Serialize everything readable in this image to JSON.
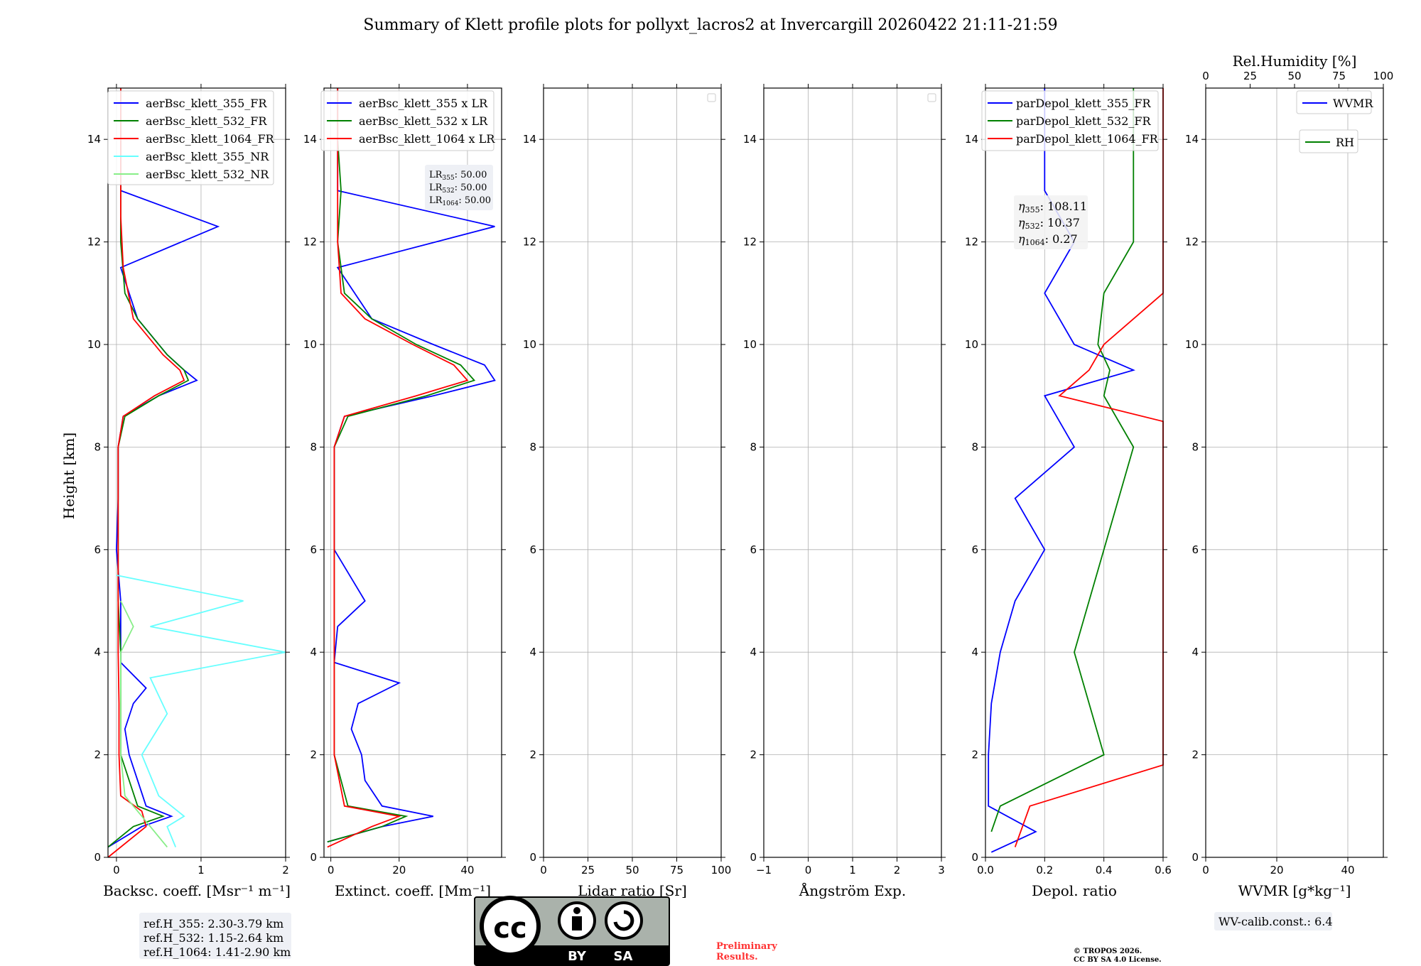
{
  "title": "Summary of Klett profile plots for pollyxt_lacros2 at Invercargill 20260422 21:11-21:59",
  "colors": {
    "c355": "#0000ff",
    "c532": "#008000",
    "c1064": "#ff0000",
    "c355nr": "#66ffff",
    "c532nr": "#88ee88"
  },
  "ylabel": "Height [km]",
  "y_ticks": [
    "0",
    "2",
    "4",
    "6",
    "8",
    "10",
    "12",
    "14"
  ],
  "panels": [
    {
      "xlabel": "Backsc. coeff. [Msr⁻¹ m⁻¹]",
      "xticks": [
        "0",
        "1",
        "2"
      ],
      "legend": [
        "aerBsc_klett_355_FR",
        "aerBsc_klett_532_FR",
        "aerBsc_klett_1064_FR",
        "aerBsc_klett_355_NR",
        "aerBsc_klett_532_NR"
      ]
    },
    {
      "xlabel": "Extinct. coeff. [Mm⁻¹]",
      "xticks": [
        "0",
        "20",
        "40"
      ],
      "legend": [
        "aerBsc_klett_355 x LR",
        "aerBsc_klett_532 x LR",
        "aerBsc_klett_1064 x LR"
      ]
    },
    {
      "xlabel": "Lidar ratio [Sr]",
      "xticks": [
        "0",
        "25",
        "50",
        "75",
        "100"
      ]
    },
    {
      "xlabel": "Ångström Exp.",
      "xticks": [
        "−1",
        "0",
        "1",
        "2",
        "3"
      ]
    },
    {
      "xlabel": "Depol. ratio",
      "xticks": [
        "0.0",
        "0.2",
        "0.4",
        "0.6"
      ],
      "legend": [
        "parDepol_klett_355_FR",
        "parDepol_klett_532_FR",
        "parDepol_klett_1064_FR"
      ]
    },
    {
      "xlabel": "WVMR [g*kg⁻¹]",
      "xticks": [
        "0",
        "20",
        "40"
      ],
      "top_label": "Rel.Humidity [%]",
      "top_ticks": [
        "0",
        "25",
        "50",
        "75",
        "100"
      ],
      "legend": [
        "WVMR",
        "RH"
      ]
    }
  ],
  "lr_box": {
    "lr355_label": "LR",
    "lr355_sub": "355",
    "lr355_val": ": 50.00",
    "lr532_label": "LR",
    "lr532_sub": "532",
    "lr532_val": ": 50.00",
    "lr1064_label": "LR",
    "lr1064_sub": "1064",
    "lr1064_val": ": 50.00"
  },
  "eta_box": {
    "e355_label": "η",
    "e355_sub": "355",
    "e355_val": ": 108.11",
    "e532_label": "η",
    "e532_sub": "532",
    "e532_val": ": 10.37",
    "e1064_label": "η",
    "e1064_sub": "1064",
    "e1064_val": ": 0.27"
  },
  "ref_box": [
    "ref.H_355: 2.30-3.79 km",
    "ref.H_532: 1.15-2.64 km",
    "ref.H_1064: 1.41-2.90 km"
  ],
  "wv_calib": "WV-calib.const.: 6.4",
  "license_badge": {
    "by": "BY",
    "sa": "SA",
    "cc": "cc"
  },
  "preliminary": [
    "Preliminary",
    "Results."
  ],
  "copyright": [
    "© TROPOS 2026.",
    "CC BY SA 4.0 License."
  ],
  "chart_data": {
    "type": "line",
    "title": "Summary of Klett profile plots for pollyxt_lacros2 at Invercargill 20260422 21:11-21:59",
    "ylabel": "Height [km]",
    "ylim": [
      0,
      15
    ],
    "panels": [
      {
        "xlabel": "Backsc. coeff. [Msr-1 m-1]",
        "xlim": [
          -0.1,
          2
        ],
        "series": [
          {
            "name": "aerBsc_klett_355_FR",
            "color": "#0000ff",
            "h": [
              0.2,
              0.6,
              0.8,
              1.0,
              1.5,
              2.0,
              2.5,
              3.0,
              3.3,
              3.8,
              4.5,
              5.0,
              6.0,
              7.0,
              8.0,
              8.6,
              9.0,
              9.3,
              9.5,
              9.8,
              10.5,
              11.5,
              12.3,
              13.0,
              14.0,
              15.0
            ],
            "v": [
              -0.1,
              0.3,
              0.65,
              0.35,
              0.25,
              0.15,
              0.1,
              0.2,
              0.35,
              0.05,
              0.05,
              0.05,
              0.0,
              0.02,
              0.02,
              0.08,
              0.5,
              0.95,
              0.8,
              0.6,
              0.25,
              0.05,
              1.2,
              0.05,
              0.05,
              0.05
            ]
          },
          {
            "name": "aerBsc_klett_532_FR",
            "color": "#008000",
            "h": [
              0.2,
              0.6,
              0.8,
              1.0,
              2.0,
              3.0,
              4.0,
              5.0,
              6.0,
              7.0,
              8.0,
              8.6,
              9.0,
              9.3,
              9.5,
              9.8,
              10.5,
              11.0,
              12.0,
              13.0,
              14.0,
              15.0
            ],
            "v": [
              -0.1,
              0.2,
              0.55,
              0.25,
              0.05,
              0.05,
              0.05,
              0.02,
              0.02,
              0.02,
              0.02,
              0.1,
              0.5,
              0.85,
              0.8,
              0.6,
              0.25,
              0.1,
              0.05,
              0.05,
              0.05,
              0.05
            ]
          },
          {
            "name": "aerBsc_klett_1064_FR",
            "color": "#ff0000",
            "h": [
              0.0,
              0.6,
              0.9,
              1.2,
              2.0,
              3.0,
              4.0,
              6.0,
              8.0,
              8.6,
              9.0,
              9.3,
              9.5,
              9.8,
              10.5,
              11.5,
              12.5,
              13.5,
              14.5,
              15.0
            ],
            "v": [
              -0.1,
              0.35,
              0.3,
              0.05,
              0.03,
              0.03,
              0.02,
              0.02,
              0.02,
              0.08,
              0.45,
              0.8,
              0.75,
              0.55,
              0.2,
              0.08,
              0.05,
              0.05,
              0.05,
              0.05
            ]
          },
          {
            "name": "aerBsc_klett_355_NR",
            "color": "#66ffff",
            "h": [
              0.2,
              0.6,
              0.8,
              1.2,
              2.0,
              2.8,
              3.5,
              4.0,
              4.5,
              5.0,
              5.5
            ],
            "v": [
              0.7,
              0.6,
              0.8,
              0.5,
              0.3,
              0.6,
              0.4,
              2.0,
              0.4,
              1.5,
              0.0
            ]
          },
          {
            "name": "aerBsc_klett_532_NR",
            "color": "#88ee88",
            "h": [
              0.2,
              0.8,
              1.2,
              2.0,
              3.0,
              4.0,
              4.5,
              5.0
            ],
            "v": [
              0.6,
              0.3,
              0.1,
              0.05,
              0.05,
              0.05,
              0.2,
              0.05
            ]
          }
        ]
      },
      {
        "xlabel": "Extinct. coeff. [Mm-1]",
        "xlim": [
          -2,
          50
        ],
        "series": [
          {
            "name": "aerBsc_klett_355 x LR",
            "color": "#0000ff",
            "h": [
              0.3,
              0.6,
              0.8,
              1.0,
              1.5,
              2.0,
              2.5,
              3.0,
              3.4,
              3.8,
              4.5,
              5.0,
              6.0,
              7.0,
              8.0,
              8.6,
              9.0,
              9.3,
              9.6,
              10.0,
              10.5,
              11.5,
              12.3,
              13.0,
              14.0,
              15.0
            ],
            "v": [
              -1,
              15,
              30,
              15,
              10,
              9,
              6,
              8,
              20,
              1,
              2,
              10,
              1,
              1,
              1,
              4,
              30,
              48,
              45,
              30,
              12,
              2,
              48,
              2,
              2,
              2
            ]
          },
          {
            "name": "aerBsc_klett_532 x LR",
            "color": "#008000",
            "h": [
              0.3,
              0.6,
              0.8,
              1.0,
              2.0,
              4.0,
              6.0,
              8.0,
              8.6,
              9.0,
              9.3,
              9.6,
              10.0,
              10.5,
              11.0,
              12.0,
              13.0,
              14.0,
              15.0
            ],
            "v": [
              -1,
              15,
              22,
              5,
              1,
              1,
              1,
              1,
              5,
              28,
              42,
              38,
              25,
              12,
              4,
              2,
              3,
              2,
              2
            ]
          },
          {
            "name": "aerBsc_klett_1064 x LR",
            "color": "#ff0000",
            "h": [
              0.2,
              0.6,
              0.8,
              1.0,
              2.0,
              4.0,
              6.0,
              8.0,
              8.6,
              9.0,
              9.3,
              9.6,
              10.0,
              10.5,
              11.0,
              12.0,
              13.0,
              14.0,
              15.0
            ],
            "v": [
              -1,
              12,
              20,
              4,
              1,
              1,
              1,
              1,
              4,
              25,
              40,
              36,
              24,
              10,
              3,
              2,
              2,
              2,
              2
            ]
          }
        ]
      },
      {
        "xlabel": "Lidar ratio [Sr]",
        "xlim": [
          0,
          100
        ],
        "series": []
      },
      {
        "xlabel": "Angstrom Exp.",
        "xlim": [
          -1,
          3
        ],
        "series": []
      },
      {
        "xlabel": "Depol. ratio",
        "xlim": [
          0,
          0.6
        ],
        "series": [
          {
            "name": "parDepol_klett_355_FR",
            "color": "#0000ff",
            "h": [
              0.1,
              0.5,
              1.0,
              2.0,
              3.0,
              4.0,
              5.0,
              6.0,
              7.0,
              8.0,
              9.0,
              9.5,
              10.0,
              11.0,
              12.0,
              13.0,
              14.0,
              15.0
            ],
            "v": [
              0.02,
              0.17,
              0.01,
              0.01,
              0.02,
              0.05,
              0.1,
              0.2,
              0.1,
              0.3,
              0.2,
              0.5,
              0.3,
              0.2,
              0.3,
              0.2,
              0.2,
              0.2
            ]
          },
          {
            "name": "parDepol_klett_532_FR",
            "color": "#008000",
            "h": [
              0.5,
              1.0,
              2.0,
              4.0,
              6.0,
              8.0,
              9.0,
              9.5,
              10.0,
              11.0,
              12.0,
              13.0,
              14.0,
              15.0
            ],
            "v": [
              0.02,
              0.05,
              0.4,
              0.3,
              0.4,
              0.5,
              0.4,
              0.42,
              0.38,
              0.4,
              0.5,
              0.5,
              0.5,
              0.5
            ]
          },
          {
            "name": "parDepol_klett_1064_FR",
            "color": "#ff0000",
            "h": [
              0.2,
              1.0,
              1.8,
              3.0,
              4.0,
              6.0,
              7.5,
              8.5,
              9.0,
              9.5,
              10.0,
              11.0,
              12.0,
              13.0,
              14.0,
              15.0
            ],
            "v": [
              0.1,
              0.15,
              0.6,
              0.6,
              0.6,
              0.6,
              0.6,
              0.6,
              0.25,
              0.35,
              0.4,
              0.6,
              0.6,
              0.6,
              0.6,
              0.6
            ]
          }
        ]
      },
      {
        "xlabel": "WVMR [g*kg-1]",
        "xlim": [
          0,
          50
        ],
        "top_xlabel": "Rel.Humidity [%]",
        "top_xlim": [
          0,
          100
        ],
        "series": []
      }
    ]
  }
}
